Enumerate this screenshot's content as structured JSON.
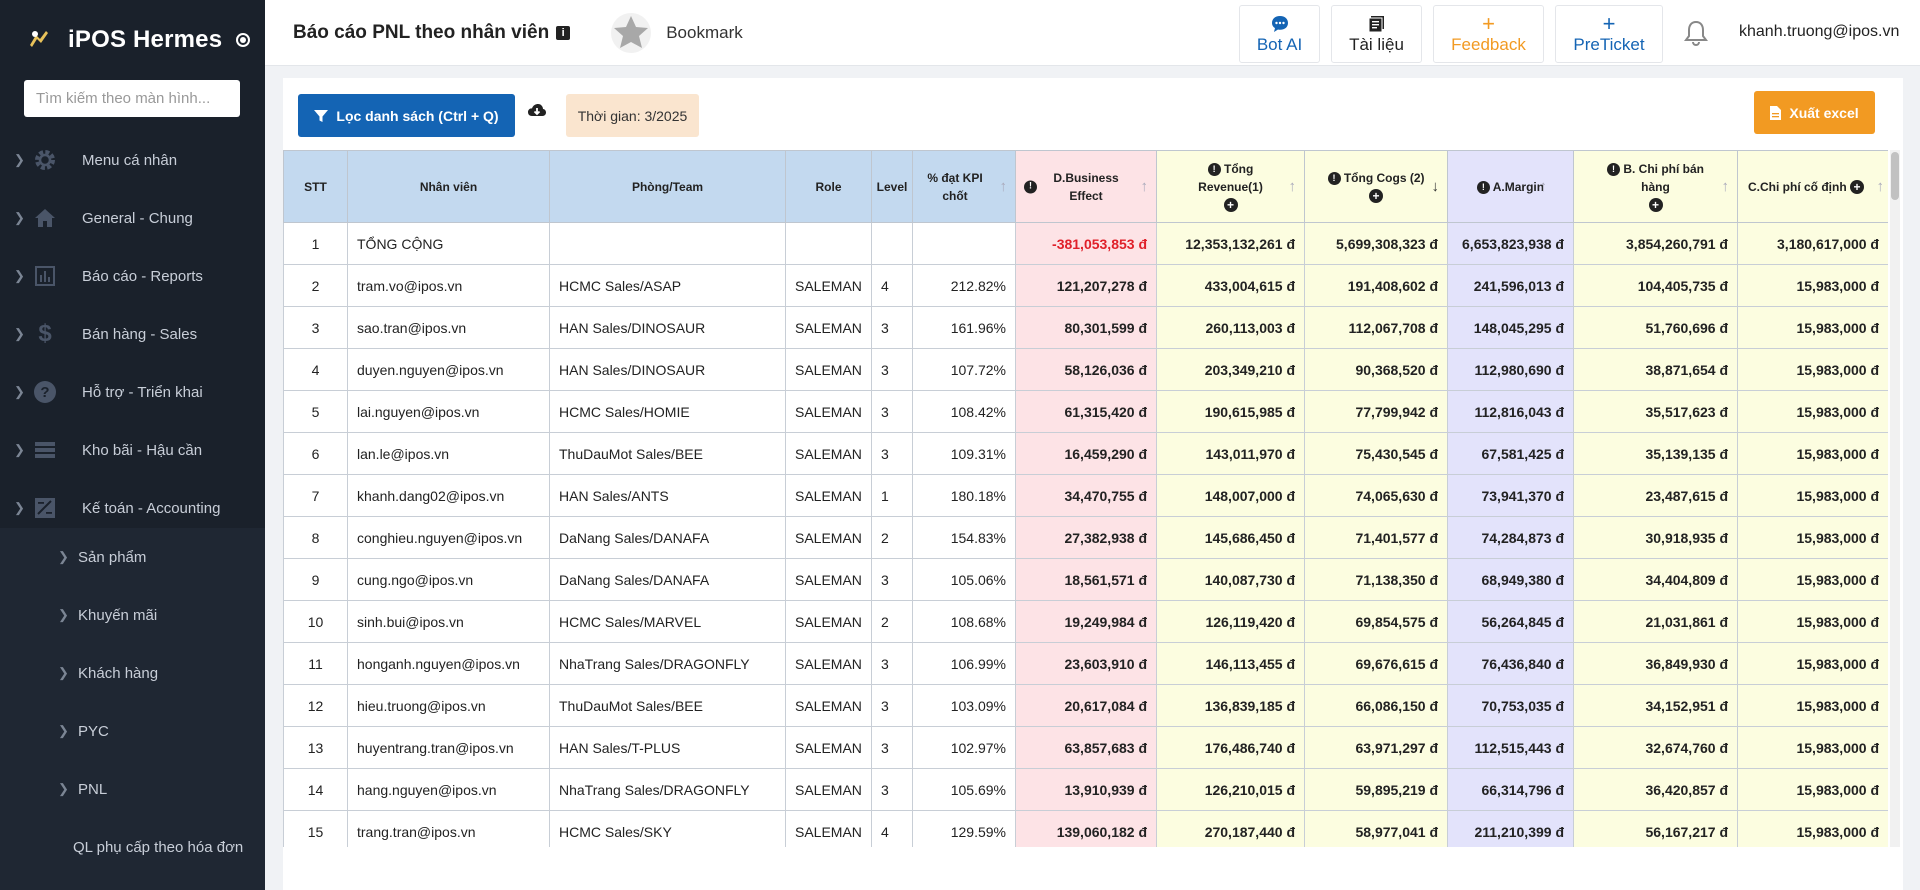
{
  "sidebar": {
    "brand": "iPOS Hermes",
    "search_placeholder": "Tìm kiếm theo màn hình...",
    "menu": [
      {
        "label": "Menu cá nhân",
        "icon": "gear-icon"
      },
      {
        "label": "General - Chung",
        "icon": "home-icon"
      },
      {
        "label": "Báo cáo - Reports",
        "icon": "chart-icon"
      },
      {
        "label": "Bán hàng - Sales",
        "icon": "dollar-icon"
      },
      {
        "label": "Hỗ trợ - Triển khai",
        "icon": "help-icon"
      },
      {
        "label": "Kho bãi - Hậu cần",
        "icon": "warehouse-icon"
      },
      {
        "label": "Kế toán - Accounting",
        "icon": "accounting-icon"
      }
    ],
    "submenu": [
      "Sản phẩm",
      "Khuyến mãi",
      "Khách hàng",
      "PYC",
      "PNL"
    ],
    "plain_item": "QL phụ cấp theo hóa đơn"
  },
  "header": {
    "title": "Báo cáo PNL theo nhân viên",
    "bookmark": "Bookmark",
    "buttons": [
      {
        "label": "Bot AI",
        "icon": "chat-icon",
        "color": "#1464b4"
      },
      {
        "label": "Tài liệu",
        "icon": "book-icon",
        "color": "#222222"
      },
      {
        "label": "Feedback",
        "icon": "plus-icon",
        "color": "#f29a22"
      },
      {
        "label": "PreTicket",
        "icon": "plus-icon",
        "color": "#1464b4"
      }
    ],
    "user_email": "khanh.truong@ipos.vn"
  },
  "toolbar": {
    "filter_label": "Lọc danh sách (Ctrl + Q)",
    "time_label": "Thời gian: 3/2025",
    "export_label": "Xuất excel"
  },
  "table": {
    "columns": [
      "STT",
      "Nhân viên",
      "Phòng/Team",
      "Role",
      "Level",
      "% đạt KPI chốt",
      "D.Business Effect",
      "Tổng Revenue(1)",
      "Tổng Cogs (2)",
      "A.Margin",
      "B. Chi phí bán hàng",
      "C.Chi phí cố định"
    ],
    "rows": [
      [
        "1",
        "TỔNG CỘNG",
        "",
        "",
        "",
        "",
        "-381,053,853 đ",
        "12,353,132,261 đ",
        "5,699,308,323 đ",
        "6,653,823,938 đ",
        "3,854,260,791 đ",
        "3,180,617,000 đ"
      ],
      [
        "2",
        "tram.vo@ipos.vn",
        "HCMC Sales/ASAP",
        "SALEMAN",
        "4",
        "212.82%",
        "121,207,278 đ",
        "433,004,615 đ",
        "191,408,602 đ",
        "241,596,013 đ",
        "104,405,735 đ",
        "15,983,000 đ"
      ],
      [
        "3",
        "sao.tran@ipos.vn",
        "HAN Sales/DINOSAUR",
        "SALEMAN",
        "3",
        "161.96%",
        "80,301,599 đ",
        "260,113,003 đ",
        "112,067,708 đ",
        "148,045,295 đ",
        "51,760,696 đ",
        "15,983,000 đ"
      ],
      [
        "4",
        "duyen.nguyen@ipos.vn",
        "HAN Sales/DINOSAUR",
        "SALEMAN",
        "3",
        "107.72%",
        "58,126,036 đ",
        "203,349,210 đ",
        "90,368,520 đ",
        "112,980,690 đ",
        "38,871,654 đ",
        "15,983,000 đ"
      ],
      [
        "5",
        "lai.nguyen@ipos.vn",
        "HCMC Sales/HOMIE",
        "SALEMAN",
        "3",
        "108.42%",
        "61,315,420 đ",
        "190,615,985 đ",
        "77,799,942 đ",
        "112,816,043 đ",
        "35,517,623 đ",
        "15,983,000 đ"
      ],
      [
        "6",
        "lan.le@ipos.vn",
        "ThuDauMot Sales/BEE",
        "SALEMAN",
        "3",
        "109.31%",
        "16,459,290 đ",
        "143,011,970 đ",
        "75,430,545 đ",
        "67,581,425 đ",
        "35,139,135 đ",
        "15,983,000 đ"
      ],
      [
        "7",
        "khanh.dang02@ipos.vn",
        "HAN Sales/ANTS",
        "SALEMAN",
        "1",
        "180.18%",
        "34,470,755 đ",
        "148,007,000 đ",
        "74,065,630 đ",
        "73,941,370 đ",
        "23,487,615 đ",
        "15,983,000 đ"
      ],
      [
        "8",
        "conghieu.nguyen@ipos.vn",
        "DaNang Sales/DANAFA",
        "SALEMAN",
        "2",
        "154.83%",
        "27,382,938 đ",
        "145,686,450 đ",
        "71,401,577 đ",
        "74,284,873 đ",
        "30,918,935 đ",
        "15,983,000 đ"
      ],
      [
        "9",
        "cung.ngo@ipos.vn",
        "DaNang Sales/DANAFA",
        "SALEMAN",
        "3",
        "105.06%",
        "18,561,571 đ",
        "140,087,730 đ",
        "71,138,350 đ",
        "68,949,380 đ",
        "34,404,809 đ",
        "15,983,000 đ"
      ],
      [
        "10",
        "sinh.bui@ipos.vn",
        "HCMC Sales/MARVEL",
        "SALEMAN",
        "2",
        "108.68%",
        "19,249,984 đ",
        "126,119,420 đ",
        "69,854,575 đ",
        "56,264,845 đ",
        "21,031,861 đ",
        "15,983,000 đ"
      ],
      [
        "11",
        "honganh.nguyen@ipos.vn",
        "NhaTrang Sales/DRAGONFLY",
        "SALEMAN",
        "3",
        "106.99%",
        "23,603,910 đ",
        "146,113,455 đ",
        "69,676,615 đ",
        "76,436,840 đ",
        "36,849,930 đ",
        "15,983,000 đ"
      ],
      [
        "12",
        "hieu.truong@ipos.vn",
        "ThuDauMot Sales/BEE",
        "SALEMAN",
        "3",
        "103.09%",
        "20,617,084 đ",
        "136,839,185 đ",
        "66,086,150 đ",
        "70,753,035 đ",
        "34,152,951 đ",
        "15,983,000 đ"
      ],
      [
        "13",
        "huyentrang.tran@ipos.vn",
        "HAN Sales/T-PLUS",
        "SALEMAN",
        "3",
        "102.97%",
        "63,857,683 đ",
        "176,486,740 đ",
        "63,971,297 đ",
        "112,515,443 đ",
        "32,674,760 đ",
        "15,983,000 đ"
      ],
      [
        "14",
        "hang.nguyen@ipos.vn",
        "NhaTrang Sales/DRAGONFLY",
        "SALEMAN",
        "3",
        "105.69%",
        "13,910,939 đ",
        "126,210,015 đ",
        "59,895,219 đ",
        "66,314,796 đ",
        "36,420,857 đ",
        "15,983,000 đ"
      ],
      [
        "15",
        "trang.tran@ipos.vn",
        "HCMC Sales/SKY",
        "SALEMAN",
        "4",
        "129.59%",
        "139,060,182 đ",
        "270,187,440 đ",
        "58,977,041 đ",
        "211,210,399 đ",
        "56,167,217 đ",
        "15,983,000 đ"
      ]
    ]
  }
}
